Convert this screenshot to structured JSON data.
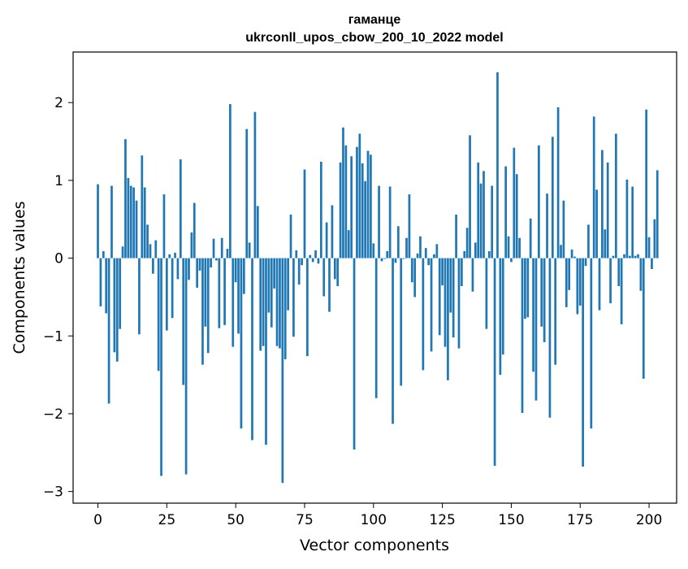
{
  "chart_data": {
    "type": "bar",
    "title": "гаманце",
    "subtitle": "ukrconll_upos_cbow_200_10_2022 model",
    "xlabel": "Vector components",
    "ylabel": "Components values",
    "xlim": [
      -9,
      210
    ],
    "ylim": [
      -3.15,
      2.65
    ],
    "xticks": [
      0,
      25,
      50,
      75,
      100,
      125,
      150,
      175,
      200
    ],
    "yticks": [
      -3,
      -2,
      -1,
      0,
      1,
      2
    ],
    "xtick_labels": [
      "0",
      "25",
      "50",
      "75",
      "100",
      "125",
      "150",
      "175",
      "200"
    ],
    "ytick_labels": [
      "−3",
      "−2",
      "−1",
      "0",
      "1",
      "2"
    ],
    "bar_color": "#1f77b4",
    "grid": false,
    "values": [
      0.95,
      -0.62,
      0.09,
      -0.71,
      -1.87,
      0.93,
      -1.21,
      -1.33,
      -0.91,
      0.15,
      1.53,
      1.03,
      0.93,
      0.91,
      0.74,
      -0.98,
      1.32,
      0.91,
      0.43,
      0.18,
      -0.2,
      0.23,
      -1.45,
      -2.8,
      0.82,
      -0.93,
      0.05,
      -0.77,
      0.07,
      -0.27,
      1.27,
      -1.63,
      -2.78,
      -0.28,
      0.33,
      0.71,
      -0.38,
      -0.16,
      -1.37,
      -0.88,
      -1.22,
      -0.12,
      0.25,
      -0.03,
      -0.9,
      0.26,
      -0.86,
      0.12,
      1.98,
      -1.14,
      -0.31,
      -0.97,
      -2.19,
      -0.46,
      1.66,
      0.2,
      -2.34,
      1.88,
      0.67,
      -1.19,
      -1.13,
      -2.4,
      -0.7,
      -0.89,
      -0.39,
      -1.13,
      -1.16,
      -2.89,
      -1.3,
      -0.67,
      0.56,
      -1.01,
      0.1,
      -0.34,
      -0.09,
      1.14,
      -1.26,
      0.04,
      -0.05,
      0.1,
      -0.07,
      1.24,
      -0.49,
      0.46,
      -0.69,
      0.68,
      -0.27,
      -0.36,
      1.23,
      1.68,
      1.45,
      0.36,
      1.31,
      -2.46,
      1.43,
      1.6,
      1.22,
      0.99,
      1.38,
      1.33,
      0.19,
      -1.8,
      0.93,
      -0.04,
      -0.01,
      0.09,
      0.92,
      -2.13,
      -0.06,
      0.41,
      -1.64,
      -0.01,
      0.26,
      0.82,
      -0.31,
      -0.5,
      0.06,
      0.28,
      -1.44,
      0.13,
      -0.09,
      -1.2,
      0.05,
      0.18,
      -0.99,
      -0.35,
      -1.14,
      -1.57,
      -0.7,
      -1.02,
      0.56,
      -1.16,
      -0.36,
      0.09,
      0.39,
      1.58,
      -0.43,
      0.2,
      1.23,
      0.96,
      1.12,
      -0.91,
      0.09,
      0.93,
      -2.67,
      2.39,
      -1.5,
      -1.24,
      1.18,
      0.28,
      -0.05,
      1.42,
      1.08,
      0.26,
      -1.99,
      -0.78,
      -0.76,
      0.51,
      -1.46,
      -1.83,
      1.45,
      -0.88,
      -1.08,
      0.83,
      -2.05,
      1.56,
      -1.37,
      1.94,
      0.17,
      0.74,
      -0.63,
      -0.41,
      0.11,
      0.02,
      -0.72,
      -0.61,
      -2.68,
      -0.1,
      0.43,
      -2.19,
      1.82,
      0.88,
      -0.67,
      1.39,
      0.37,
      1.23,
      -0.58,
      0.03,
      1.6,
      -0.36,
      -0.85,
      0.05,
      1.01,
      0.03,
      0.92,
      0.03,
      0.05,
      -0.42,
      -1.55,
      1.91,
      0.27,
      -0.14,
      0.5,
      1.13
    ]
  }
}
